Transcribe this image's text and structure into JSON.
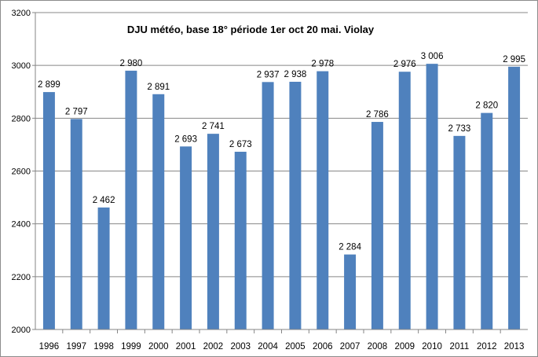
{
  "chart_data": {
    "type": "bar",
    "title": "DJU météo, base 18° période 1er oct 20 mai. Violay",
    "xlabel": "",
    "ylabel": "",
    "categories": [
      "1996",
      "1997",
      "1998",
      "1999",
      "2000",
      "2001",
      "2002",
      "2003",
      "2004",
      "2005",
      "2006",
      "2007",
      "2008",
      "2009",
      "2010",
      "2011",
      "2012",
      "2013"
    ],
    "values": [
      2899,
      2797,
      2462,
      2980,
      2891,
      2693,
      2741,
      2673,
      2937,
      2938,
      2978,
      2284,
      2786,
      2976,
      3006,
      2733,
      2820,
      2995
    ],
    "data_labels": [
      "2 899",
      "2 797",
      "2 462",
      "2 980",
      "2 891",
      "2 693",
      "2 741",
      "2 673",
      "2 937",
      "2 938",
      "2 978",
      "2 284",
      "2 786",
      "2 976",
      "3 006",
      "2 733",
      "2 820",
      "2 995"
    ],
    "ylim": [
      2000,
      3200
    ],
    "yticks": [
      2000,
      2200,
      2400,
      2600,
      2800,
      3000,
      3200
    ],
    "grid": true,
    "legend": "none",
    "bar_color": "#4f81bd",
    "grid_color": "#878787"
  }
}
